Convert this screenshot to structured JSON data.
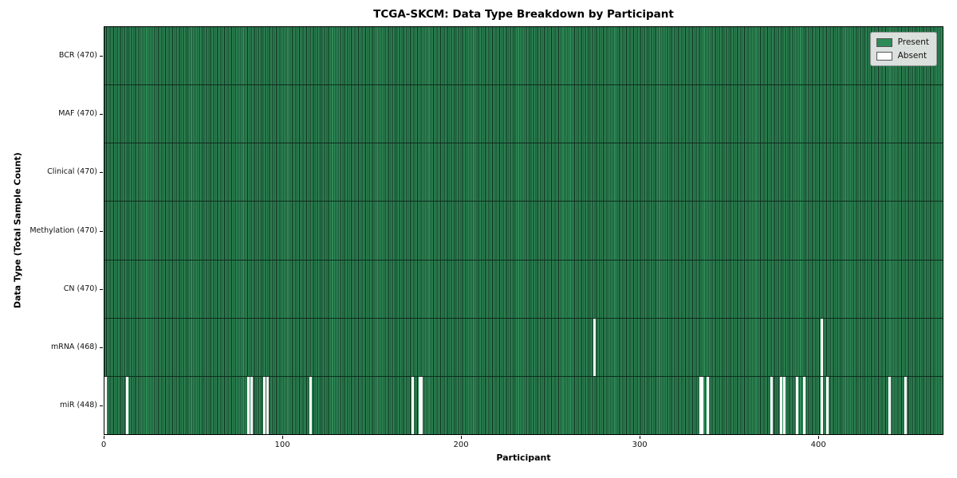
{
  "chart_data": {
    "type": "heatmap",
    "title": "TCGA-SKCM: Data Type Breakdown by Participant",
    "xlabel": "Participant",
    "ylabel": "Data Type (Total Sample Count)",
    "n_participants": 470,
    "x_ticks": [
      0,
      100,
      200,
      300,
      400
    ],
    "grid": false,
    "legend_position": "upper right",
    "rows": [
      {
        "key": "bcr",
        "label": "BCR (470)",
        "total_samples": 470,
        "absent_participants": []
      },
      {
        "key": "maf",
        "label": "MAF (470)",
        "total_samples": 470,
        "absent_participants": []
      },
      {
        "key": "clinical",
        "label": "Clinical (470)",
        "total_samples": 470,
        "absent_participants": []
      },
      {
        "key": "methylation",
        "label": "Methylation (470)",
        "total_samples": 470,
        "absent_participants": []
      },
      {
        "key": "cn",
        "label": "CN (470)",
        "total_samples": 470,
        "absent_participants": []
      },
      {
        "key": "mrna",
        "label": "mRNA (468)",
        "total_samples": 468,
        "absent_participants": [
          274,
          401
        ]
      },
      {
        "key": "mir",
        "label": "miR (448)",
        "total_samples": 448,
        "absent_participants": [
          0,
          12,
          80,
          82,
          89,
          91,
          115,
          172,
          176,
          177,
          333,
          334,
          337,
          373,
          378,
          380,
          387,
          391,
          401,
          404,
          439,
          448
        ]
      }
    ],
    "legend": [
      {
        "label": "Present",
        "color": "#2e8b57"
      },
      {
        "label": "Absent",
        "color": "#ffffff"
      }
    ],
    "colors": {
      "present": "#2e8b57",
      "absent": "#ffffff",
      "bar_edge": "#0e2b1c",
      "separator": "#0e2b1c",
      "spine": "#000000",
      "legend_bg": "#eaeaea"
    }
  }
}
